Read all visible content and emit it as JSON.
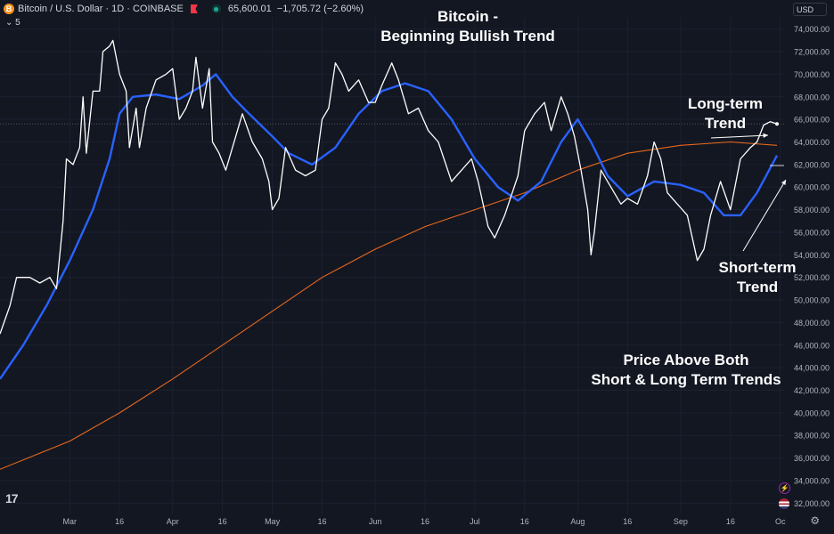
{
  "header": {
    "symbol": "Bitcoin / U.S. Dollar · 1D · COINBASE",
    "coin_glyph": "B",
    "price": "65,600.01",
    "change": "−1,705.72 (−2.60%)",
    "indicator_label": "⌄ 5",
    "currency": "USD"
  },
  "annotations": {
    "title_line1": "Bitcoin -",
    "title_line2": "Beginning Bullish Trend",
    "long_term_line1": "Long-term",
    "long_term_line2": "Trend",
    "short_term_line1": "Short-term",
    "short_term_line2": "Trend",
    "price_above_line1": "Price Above Both",
    "price_above_line2": "Short & Long Term Trends"
  },
  "colors": {
    "background": "#131722",
    "price": "#ffffff",
    "short_ma": "#2962ff",
    "long_ma": "#e8681c",
    "axis_text": "#b2b5be"
  },
  "icons": {
    "logo": "tradingview-logo-icon",
    "settings": "gear-icon"
  },
  "chart_data": {
    "type": "line",
    "x_range": [
      "2024-02-09",
      "2024-09-30"
    ],
    "ylim": [
      31000,
      75000
    ],
    "y_ticks": [
      32000,
      34000,
      36000,
      38000,
      40000,
      42000,
      44000,
      46000,
      48000,
      50000,
      52000,
      54000,
      56000,
      58000,
      60000,
      62000,
      64000,
      66000,
      68000,
      70000,
      72000,
      74000
    ],
    "y_tick_labels": [
      "32,000.00",
      "34,000.00",
      "36,000.00",
      "38,000.00",
      "40,000.00",
      "42,000.00",
      "44,000.00",
      "46,000.00",
      "48,000.00",
      "50,000.00",
      "52,000.00",
      "54,000.00",
      "56,000.00",
      "58,000.00",
      "60,000.00",
      "62,000.00",
      "64,000.00",
      "66,000.00",
      "68,000.00",
      "70,000.00",
      "72,000.00",
      "74,000.00"
    ],
    "x_ticks": [
      {
        "label": "Mar",
        "date": "2024-03-01"
      },
      {
        "label": "16",
        "date": "2024-03-16"
      },
      {
        "label": "Apr",
        "date": "2024-04-01"
      },
      {
        "label": "16",
        "date": "2024-04-16"
      },
      {
        "label": "May",
        "date": "2024-05-01"
      },
      {
        "label": "16",
        "date": "2024-05-16"
      },
      {
        "label": "Jun",
        "date": "2024-06-01"
      },
      {
        "label": "16",
        "date": "2024-06-16"
      },
      {
        "label": "Jul",
        "date": "2024-07-01"
      },
      {
        "label": "16",
        "date": "2024-07-16"
      },
      {
        "label": "Aug",
        "date": "2024-08-01"
      },
      {
        "label": "16",
        "date": "2024-08-16"
      },
      {
        "label": "Sep",
        "date": "2024-09-01"
      },
      {
        "label": "16",
        "date": "2024-09-16"
      },
      {
        "label": "Oc",
        "date": "2024-10-01"
      }
    ],
    "current_price": 65600,
    "series": [
      {
        "role": "price",
        "points": [
          [
            "2024-02-09",
            47000
          ],
          [
            "2024-02-12",
            49500
          ],
          [
            "2024-02-14",
            52000
          ],
          [
            "2024-02-18",
            52000
          ],
          [
            "2024-02-21",
            51500
          ],
          [
            "2024-02-24",
            52000
          ],
          [
            "2024-02-26",
            51000
          ],
          [
            "2024-02-28",
            57000
          ],
          [
            "2024-02-29",
            62500
          ],
          [
            "2024-03-02",
            62000
          ],
          [
            "2024-03-04",
            63500
          ],
          [
            "2024-03-05",
            68000
          ],
          [
            "2024-03-06",
            63000
          ],
          [
            "2024-03-08",
            68500
          ],
          [
            "2024-03-10",
            68500
          ],
          [
            "2024-03-11",
            72000
          ],
          [
            "2024-03-13",
            72500
          ],
          [
            "2024-03-14",
            73000
          ],
          [
            "2024-03-16",
            70000
          ],
          [
            "2024-03-18",
            68500
          ],
          [
            "2024-03-19",
            63500
          ],
          [
            "2024-03-21",
            67000
          ],
          [
            "2024-03-22",
            63500
          ],
          [
            "2024-03-24",
            67000
          ],
          [
            "2024-03-27",
            69500
          ],
          [
            "2024-03-30",
            70000
          ],
          [
            "2024-04-01",
            70500
          ],
          [
            "2024-04-03",
            66000
          ],
          [
            "2024-04-05",
            67000
          ],
          [
            "2024-04-07",
            68500
          ],
          [
            "2024-04-08",
            71500
          ],
          [
            "2024-04-10",
            67000
          ],
          [
            "2024-04-12",
            70500
          ],
          [
            "2024-04-13",
            64000
          ],
          [
            "2024-04-15",
            63000
          ],
          [
            "2024-04-17",
            61500
          ],
          [
            "2024-04-20",
            64500
          ],
          [
            "2024-04-22",
            66500
          ],
          [
            "2024-04-25",
            64000
          ],
          [
            "2024-04-28",
            62500
          ],
          [
            "2024-04-30",
            60500
          ],
          [
            "2024-05-01",
            58000
          ],
          [
            "2024-05-03",
            59000
          ],
          [
            "2024-05-05",
            63500
          ],
          [
            "2024-05-08",
            61500
          ],
          [
            "2024-05-11",
            61000
          ],
          [
            "2024-05-14",
            61500
          ],
          [
            "2024-05-16",
            66000
          ],
          [
            "2024-05-18",
            67000
          ],
          [
            "2024-05-20",
            71000
          ],
          [
            "2024-05-22",
            70000
          ],
          [
            "2024-05-24",
            68500
          ],
          [
            "2024-05-27",
            69500
          ],
          [
            "2024-05-30",
            67500
          ],
          [
            "2024-06-01",
            67500
          ],
          [
            "2024-06-03",
            69000
          ],
          [
            "2024-06-06",
            71000
          ],
          [
            "2024-06-08",
            69500
          ],
          [
            "2024-06-11",
            66500
          ],
          [
            "2024-06-14",
            67000
          ],
          [
            "2024-06-17",
            65000
          ],
          [
            "2024-06-20",
            64000
          ],
          [
            "2024-06-24",
            60500
          ],
          [
            "2024-06-27",
            61500
          ],
          [
            "2024-06-30",
            62500
          ],
          [
            "2024-07-02",
            60500
          ],
          [
            "2024-07-05",
            56500
          ],
          [
            "2024-07-07",
            55500
          ],
          [
            "2024-07-10",
            57500
          ],
          [
            "2024-07-14",
            61000
          ],
          [
            "2024-07-16",
            65000
          ],
          [
            "2024-07-19",
            66500
          ],
          [
            "2024-07-22",
            67500
          ],
          [
            "2024-07-24",
            65000
          ],
          [
            "2024-07-27",
            68000
          ],
          [
            "2024-07-29",
            66500
          ],
          [
            "2024-07-31",
            64500
          ],
          [
            "2024-08-02",
            61500
          ],
          [
            "2024-08-04",
            58000
          ],
          [
            "2024-08-05",
            54000
          ],
          [
            "2024-08-06",
            56000
          ],
          [
            "2024-08-08",
            61500
          ],
          [
            "2024-08-10",
            60500
          ],
          [
            "2024-08-14",
            58500
          ],
          [
            "2024-08-16",
            59000
          ],
          [
            "2024-08-19",
            58500
          ],
          [
            "2024-08-22",
            61000
          ],
          [
            "2024-08-24",
            64000
          ],
          [
            "2024-08-26",
            62500
          ],
          [
            "2024-08-28",
            59500
          ],
          [
            "2024-08-31",
            58500
          ],
          [
            "2024-09-03",
            57500
          ],
          [
            "2024-09-06",
            53500
          ],
          [
            "2024-09-08",
            54500
          ],
          [
            "2024-09-10",
            57500
          ],
          [
            "2024-09-13",
            60500
          ],
          [
            "2024-09-16",
            58000
          ],
          [
            "2024-09-19",
            62500
          ],
          [
            "2024-09-22",
            63500
          ],
          [
            "2024-09-24",
            64000
          ],
          [
            "2024-09-26",
            65500
          ],
          [
            "2024-09-28",
            65800
          ],
          [
            "2024-09-30",
            65600
          ]
        ]
      },
      {
        "role": "short-term trend",
        "points": [
          [
            "2024-02-09",
            43000
          ],
          [
            "2024-02-16",
            46000
          ],
          [
            "2024-02-23",
            49500
          ],
          [
            "2024-03-01",
            53500
          ],
          [
            "2024-03-08",
            58000
          ],
          [
            "2024-03-13",
            62500
          ],
          [
            "2024-03-16",
            66500
          ],
          [
            "2024-03-20",
            68000
          ],
          [
            "2024-03-27",
            68200
          ],
          [
            "2024-04-03",
            67800
          ],
          [
            "2024-04-10",
            69000
          ],
          [
            "2024-04-14",
            70000
          ],
          [
            "2024-04-19",
            68000
          ],
          [
            "2024-04-24",
            66500
          ],
          [
            "2024-05-01",
            64500
          ],
          [
            "2024-05-06",
            63000
          ],
          [
            "2024-05-13",
            62000
          ],
          [
            "2024-05-20",
            63500
          ],
          [
            "2024-05-27",
            66500
          ],
          [
            "2024-06-03",
            68500
          ],
          [
            "2024-06-10",
            69200
          ],
          [
            "2024-06-17",
            68500
          ],
          [
            "2024-06-24",
            66000
          ],
          [
            "2024-07-01",
            62500
          ],
          [
            "2024-07-08",
            60000
          ],
          [
            "2024-07-14",
            58800
          ],
          [
            "2024-07-21",
            60500
          ],
          [
            "2024-07-27",
            64000
          ],
          [
            "2024-08-01",
            66000
          ],
          [
            "2024-08-05",
            64000
          ],
          [
            "2024-08-10",
            61000
          ],
          [
            "2024-08-16",
            59200
          ],
          [
            "2024-08-24",
            60500
          ],
          [
            "2024-09-01",
            60200
          ],
          [
            "2024-09-08",
            59500
          ],
          [
            "2024-09-14",
            57500
          ],
          [
            "2024-09-19",
            57500
          ],
          [
            "2024-09-24",
            59500
          ],
          [
            "2024-09-30",
            62800
          ]
        ]
      },
      {
        "role": "long-term trend",
        "points": [
          [
            "2024-02-09",
            35000
          ],
          [
            "2024-03-01",
            37500
          ],
          [
            "2024-03-16",
            40000
          ],
          [
            "2024-04-01",
            43000
          ],
          [
            "2024-04-16",
            46000
          ],
          [
            "2024-05-01",
            49000
          ],
          [
            "2024-05-16",
            52000
          ],
          [
            "2024-06-01",
            54500
          ],
          [
            "2024-06-16",
            56500
          ],
          [
            "2024-07-01",
            58000
          ],
          [
            "2024-07-16",
            59500
          ],
          [
            "2024-08-01",
            61500
          ],
          [
            "2024-08-16",
            63000
          ],
          [
            "2024-09-01",
            63700
          ],
          [
            "2024-09-16",
            64000
          ],
          [
            "2024-09-30",
            63700
          ]
        ]
      }
    ]
  }
}
